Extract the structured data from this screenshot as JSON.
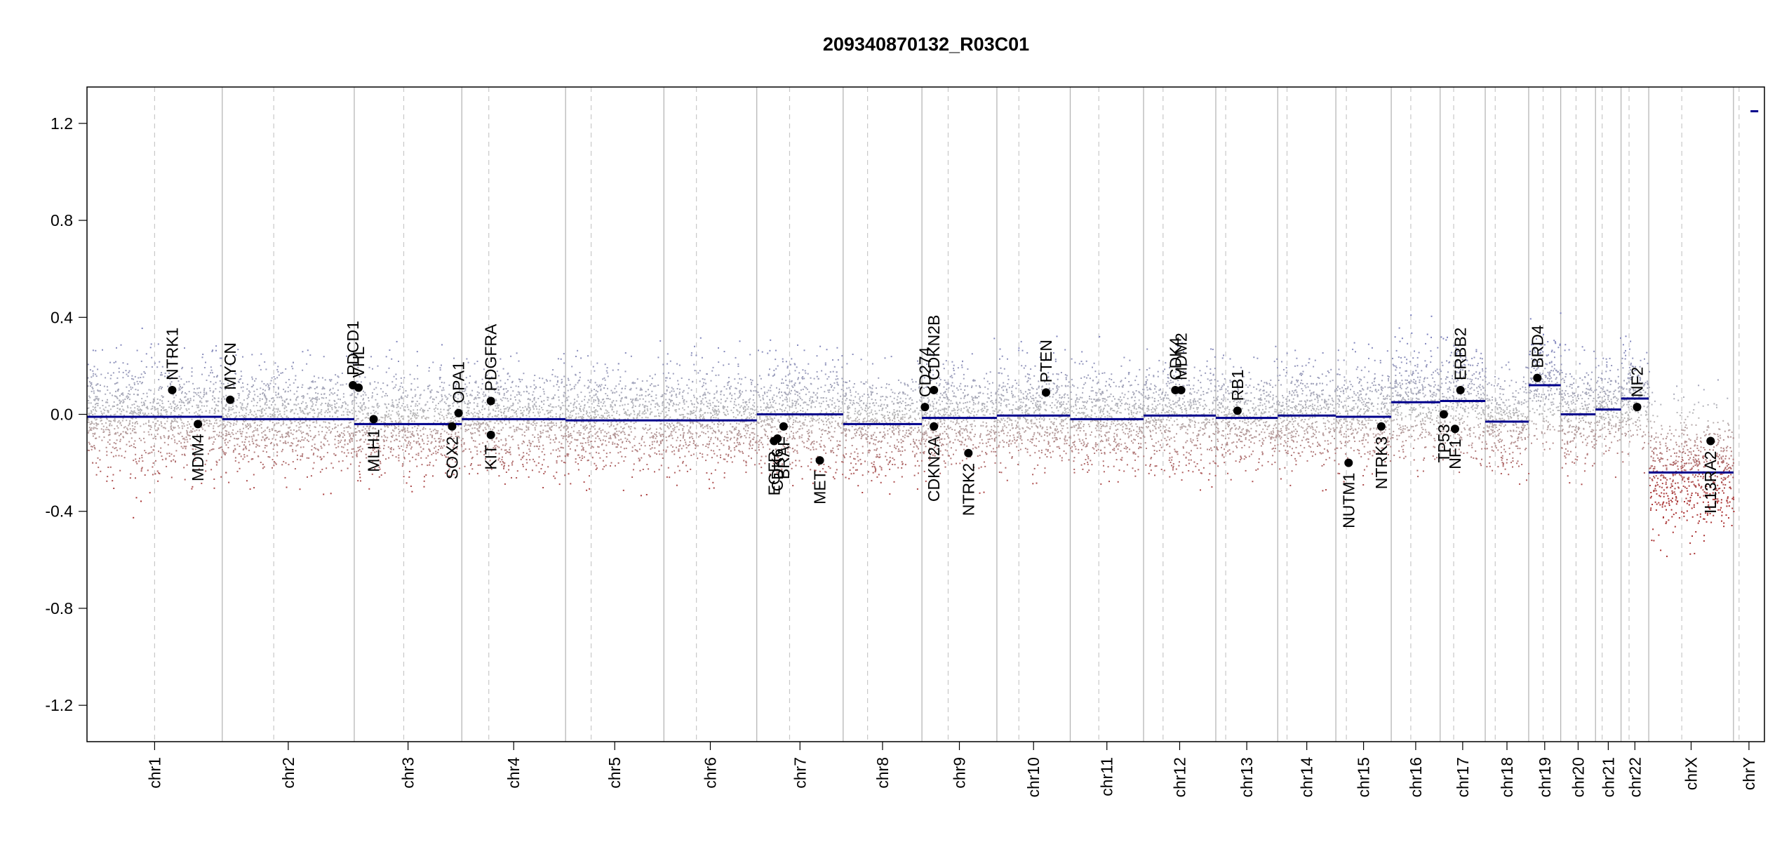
{
  "chart_data": {
    "type": "scatter",
    "title": "209340870132_R03C01",
    "xlabel": "",
    "ylabel": "",
    "ylim": [
      -1.35,
      1.35
    ],
    "yticks": [
      1.2,
      0.8,
      0.4,
      0.0,
      -0.4,
      -0.8,
      -1.2
    ],
    "ytick_labels": [
      "1.2",
      "0.8",
      "0.4",
      "0.0",
      "-0.4",
      "-0.8",
      "-1.2"
    ],
    "grid": false,
    "colors": {
      "segment": "#00008b",
      "gain_points": "#8a8fc7",
      "loss_points": "#b04848",
      "neutral_points": "#b8b8b8",
      "gene_marker": "#000000",
      "boundary": "#b0b0b0",
      "centromere": "#c8c8c8"
    },
    "chromosomes": [
      {
        "name": "chr1",
        "length": 249,
        "centromere": 0.5,
        "segments": [
          {
            "from": 0,
            "to": 1,
            "value": -0.01
          }
        ],
        "noise": 0.11,
        "shift": 0.0
      },
      {
        "name": "chr2",
        "length": 243,
        "centromere": 0.39,
        "segments": [
          {
            "from": 0,
            "to": 1,
            "value": -0.02
          }
        ],
        "noise": 0.1,
        "shift": 0.0
      },
      {
        "name": "chr3",
        "length": 198,
        "centromere": 0.46,
        "segments": [
          {
            "from": 0,
            "to": 1,
            "value": -0.04
          }
        ],
        "noise": 0.1,
        "shift": 0.0
      },
      {
        "name": "chr4",
        "length": 191,
        "centromere": 0.26,
        "segments": [
          {
            "from": 0,
            "to": 1,
            "value": -0.02
          }
        ],
        "noise": 0.1,
        "shift": 0.0
      },
      {
        "name": "chr5",
        "length": 181,
        "centromere": 0.26,
        "segments": [
          {
            "from": 0,
            "to": 1,
            "value": -0.025
          }
        ],
        "noise": 0.1,
        "shift": 0.0
      },
      {
        "name": "chr6",
        "length": 171,
        "centromere": 0.35,
        "segments": [
          {
            "from": 0,
            "to": 1,
            "value": -0.025
          }
        ],
        "noise": 0.1,
        "shift": 0.0
      },
      {
        "name": "chr7",
        "length": 159,
        "centromere": 0.38,
        "segments": [
          {
            "from": 0,
            "to": 1,
            "value": 0.0
          }
        ],
        "noise": 0.11,
        "shift": 0.0
      },
      {
        "name": "chr8",
        "length": 145,
        "centromere": 0.31,
        "segments": [
          {
            "from": 0,
            "to": 1,
            "value": -0.04
          }
        ],
        "noise": 0.1,
        "shift": 0.0
      },
      {
        "name": "chr9",
        "length": 138,
        "centromere": 0.35,
        "segments": [
          {
            "from": 0,
            "to": 1,
            "value": -0.015
          }
        ],
        "noise": 0.1,
        "shift": 0.0
      },
      {
        "name": "chr10",
        "length": 135,
        "centromere": 0.3,
        "segments": [
          {
            "from": 0,
            "to": 1,
            "value": -0.005
          }
        ],
        "noise": 0.1,
        "shift": 0.0
      },
      {
        "name": "chr11",
        "length": 135,
        "centromere": 0.39,
        "segments": [
          {
            "from": 0,
            "to": 1,
            "value": -0.02
          }
        ],
        "noise": 0.1,
        "shift": 0.0
      },
      {
        "name": "chr12",
        "length": 133,
        "centromere": 0.27,
        "segments": [
          {
            "from": 0,
            "to": 1,
            "value": -0.005
          }
        ],
        "noise": 0.11,
        "shift": 0.0
      },
      {
        "name": "chr13",
        "length": 114,
        "centromere": 0.16,
        "segments": [
          {
            "from": 0,
            "to": 1,
            "value": -0.015
          }
        ],
        "noise": 0.09,
        "shift": 0.0
      },
      {
        "name": "chr14",
        "length": 107,
        "centromere": 0.16,
        "segments": [
          {
            "from": 0,
            "to": 1,
            "value": -0.005
          }
        ],
        "noise": 0.1,
        "shift": 0.0
      },
      {
        "name": "chr15",
        "length": 102,
        "centromere": 0.19,
        "segments": [
          {
            "from": 0,
            "to": 1,
            "value": -0.01
          }
        ],
        "noise": 0.1,
        "shift": 0.0
      },
      {
        "name": "chr16",
        "length": 90,
        "centromere": 0.4,
        "segments": [
          {
            "from": 0,
            "to": 1,
            "value": 0.05
          }
        ],
        "noise": 0.11,
        "shift": 0.03
      },
      {
        "name": "chr17",
        "length": 83,
        "centromere": 0.3,
        "segments": [
          {
            "from": 0,
            "to": 1,
            "value": 0.055
          }
        ],
        "noise": 0.11,
        "shift": 0.03
      },
      {
        "name": "chr18",
        "length": 80,
        "centromere": 0.23,
        "segments": [
          {
            "from": 0,
            "to": 1,
            "value": -0.03
          }
        ],
        "noise": 0.09,
        "shift": 0.0
      },
      {
        "name": "chr19",
        "length": 59,
        "centromere": 0.45,
        "segments": [
          {
            "from": 0,
            "to": 1,
            "value": 0.12
          }
        ],
        "noise": 0.11,
        "shift": 0.08
      },
      {
        "name": "chr20",
        "length": 64,
        "centromere": 0.44,
        "segments": [
          {
            "from": 0,
            "to": 1,
            "value": 0.0
          }
        ],
        "noise": 0.1,
        "shift": 0.0
      },
      {
        "name": "chr21",
        "length": 47,
        "centromere": 0.26,
        "segments": [
          {
            "from": 0,
            "to": 1,
            "value": 0.02
          }
        ],
        "noise": 0.09,
        "shift": 0.0
      },
      {
        "name": "chr22",
        "length": 51,
        "centromere": 0.29,
        "segments": [
          {
            "from": 0,
            "to": 1,
            "value": 0.065
          }
        ],
        "noise": 0.1,
        "shift": 0.03
      },
      {
        "name": "chrX",
        "length": 156,
        "centromere": 0.39,
        "segments": [
          {
            "from": 0,
            "to": 1,
            "value": -0.24
          }
        ],
        "noise": 0.12,
        "shift": -0.2
      },
      {
        "name": "chrY",
        "length": 57,
        "centromere": 0.18,
        "segments": [
          {
            "from": 0.55,
            "to": 0.8,
            "value": 1.25
          }
        ],
        "noise": 0.0,
        "shift": 0.0
      }
    ],
    "genes": [
      {
        "name": "NTRK1",
        "chr": "chr1",
        "pos": 0.63,
        "value": 0.1,
        "label_side": "above"
      },
      {
        "name": "MDM4",
        "chr": "chr1",
        "pos": 0.82,
        "value": -0.04,
        "label_side": "below"
      },
      {
        "name": "MYCN",
        "chr": "chr2",
        "pos": 0.06,
        "value": 0.06,
        "label_side": "above"
      },
      {
        "name": "PDCD1",
        "chr": "chr2",
        "pos": 0.99,
        "value": 0.12,
        "label_side": "above"
      },
      {
        "name": "VHL",
        "chr": "chr3",
        "pos": 0.04,
        "value": 0.11,
        "label_side": "above"
      },
      {
        "name": "MLH1",
        "chr": "chr3",
        "pos": 0.18,
        "value": -0.02,
        "label_side": "below"
      },
      {
        "name": "SOX2",
        "chr": "chr3",
        "pos": 0.91,
        "value": -0.05,
        "label_side": "below"
      },
      {
        "name": "OPA1",
        "chr": "chr3",
        "pos": 0.97,
        "value": 0.005,
        "label_side": "above"
      },
      {
        "name": "PDGFRA",
        "chr": "chr4",
        "pos": 0.28,
        "value": 0.055,
        "label_side": "above"
      },
      {
        "name": "KIT",
        "chr": "chr4",
        "pos": 0.28,
        "value": -0.085,
        "label_side": "below"
      },
      {
        "name": "EGFR",
        "chr": "chr7",
        "pos": 0.2,
        "value": -0.11,
        "label_side": "below"
      },
      {
        "name": "CDK6",
        "chr": "chr7",
        "pos": 0.24,
        "value": -0.1,
        "label_side": "below"
      },
      {
        "name": "BRAF",
        "chr": "chr7",
        "pos": 0.31,
        "value": -0.05,
        "label_side": "below"
      },
      {
        "name": "MET",
        "chr": "chr7",
        "pos": 0.73,
        "value": -0.19,
        "label_side": "below"
      },
      {
        "name": "CD274",
        "chr": "chr9",
        "pos": 0.04,
        "value": 0.03,
        "label_side": "above"
      },
      {
        "name": "CDKN2B",
        "chr": "chr9",
        "pos": 0.16,
        "value": 0.1,
        "label_side": "above"
      },
      {
        "name": "CDKN2A",
        "chr": "chr9",
        "pos": 0.16,
        "value": -0.05,
        "label_side": "below"
      },
      {
        "name": "NTRK2",
        "chr": "chr9",
        "pos": 0.62,
        "value": -0.16,
        "label_side": "below"
      },
      {
        "name": "PTEN",
        "chr": "chr10",
        "pos": 0.67,
        "value": 0.09,
        "label_side": "above"
      },
      {
        "name": "CDK4",
        "chr": "chr12",
        "pos": 0.44,
        "value": 0.1,
        "label_side": "above"
      },
      {
        "name": "MDM2",
        "chr": "chr12",
        "pos": 0.52,
        "value": 0.1,
        "label_side": "above"
      },
      {
        "name": "RB1",
        "chr": "chr13",
        "pos": 0.35,
        "value": 0.015,
        "label_side": "above"
      },
      {
        "name": "NUTM1",
        "chr": "chr15",
        "pos": 0.23,
        "value": -0.2,
        "label_side": "below"
      },
      {
        "name": "NTRK3",
        "chr": "chr15",
        "pos": 0.82,
        "value": -0.05,
        "label_side": "below"
      },
      {
        "name": "TP53",
        "chr": "chr17",
        "pos": 0.08,
        "value": 0.0,
        "label_side": "below"
      },
      {
        "name": "NF1",
        "chr": "chr17",
        "pos": 0.33,
        "value": -0.06,
        "label_side": "below"
      },
      {
        "name": "ERBB2",
        "chr": "chr17",
        "pos": 0.45,
        "value": 0.1,
        "label_side": "above"
      },
      {
        "name": "BRD4",
        "chr": "chr19",
        "pos": 0.27,
        "value": 0.15,
        "label_side": "above"
      },
      {
        "name": "NF2",
        "chr": "chr22",
        "pos": 0.58,
        "value": 0.03,
        "label_side": "above"
      },
      {
        "name": "IL13RA2",
        "chr": "chrX",
        "pos": 0.73,
        "value": -0.11,
        "label_side": "below"
      }
    ]
  }
}
